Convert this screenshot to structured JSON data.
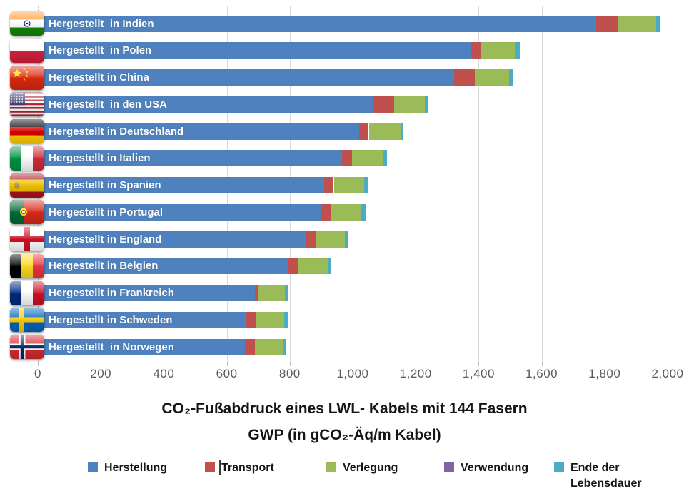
{
  "title": {
    "line1": "CO₂-Fußabdruck eines LWL- Kabels mit 144 Fasern",
    "line2": "GWP (in gCO₂-Äq/m Kabel)"
  },
  "legend": {
    "items": [
      {
        "label": "Herstellung",
        "color": "#4E81BD"
      },
      {
        "label": "Transport",
        "color": "#C0504D"
      },
      {
        "label": "Verlegung",
        "color": "#9BBB59"
      },
      {
        "label": "Verwendung",
        "color": "#8064A2"
      },
      {
        "label": "Ende der\nLebensdauer",
        "color": "#4BACC6"
      }
    ]
  },
  "colors": {
    "herstellung": "#4E81BD",
    "transport": "#C0504D",
    "verlegung": "#9BBB59",
    "verwendung": "#8064A2",
    "ende_der_lebensdauer": "#4BACC6",
    "gridline": "#d9d9d9",
    "axis_text": "#595959"
  },
  "chart_data": {
    "type": "bar",
    "orientation": "horizontal",
    "stacked": true,
    "title": "CO₂-Fußabdruck eines LWL- Kabels mit 144 Fasern",
    "subtitle": "GWP (in gCO₂-Äq/m Kabel)",
    "xlim": [
      0,
      2000
    ],
    "x_ticks": [
      0,
      200,
      400,
      600,
      800,
      1000,
      1200,
      1400,
      1600,
      1800,
      2000
    ],
    "grid": true,
    "legend_position": "bottom",
    "categories": [
      "Hergestellt  in Indien",
      "Hergestellt  in Polen",
      "Hergestellt in China",
      "Hergestellt  in den USA",
      "Hergestellt in Deutschland",
      "Hergestellt in Italien",
      "Hergestellt in Spanien",
      "Hergestellt in Portugal",
      "Hergestellt in England",
      "Hergestellt in Belgien",
      "Hergestellt in Frankreich",
      "Hergestellt in Schweden",
      "Hergestellt  in Norwegen"
    ],
    "flags": [
      "india",
      "poland",
      "china",
      "usa",
      "germany",
      "italy",
      "spain",
      "portugal",
      "england",
      "belgium",
      "france",
      "sweden",
      "norway"
    ],
    "series": [
      {
        "name": "Herstellung",
        "color": "#4E81BD",
        "values": [
          1774,
          1374,
          1322,
          1066,
          1020,
          965,
          910,
          897,
          850,
          795,
          690,
          663,
          657
        ]
      },
      {
        "name": "Transport",
        "color": "#C0504D",
        "values": [
          68,
          33,
          66,
          66,
          31,
          32,
          30,
          34,
          32,
          33,
          9,
          29,
          33
        ]
      },
      {
        "name": "Verlegung",
        "color": "#9BBB59",
        "values": [
          121,
          108,
          109,
          97,
          100,
          98,
          96,
          96,
          92,
          92,
          86,
          90,
          87
        ]
      },
      {
        "name": "Verwendung",
        "color": "#8064A2",
        "values": [
          0,
          0,
          0,
          0,
          0,
          0,
          0,
          0,
          0,
          0,
          0,
          0,
          0
        ]
      },
      {
        "name": "Ende der Lebensdauer",
        "color": "#4BACC6",
        "values": [
          12,
          15,
          13,
          12,
          11,
          13,
          12,
          14,
          12,
          12,
          11,
          11,
          10
        ]
      }
    ],
    "totals": [
      1975,
      1530,
      1510,
      1241,
      1162,
      1108,
      1048,
      1041,
      986,
      932,
      796,
      793,
      787
    ]
  }
}
